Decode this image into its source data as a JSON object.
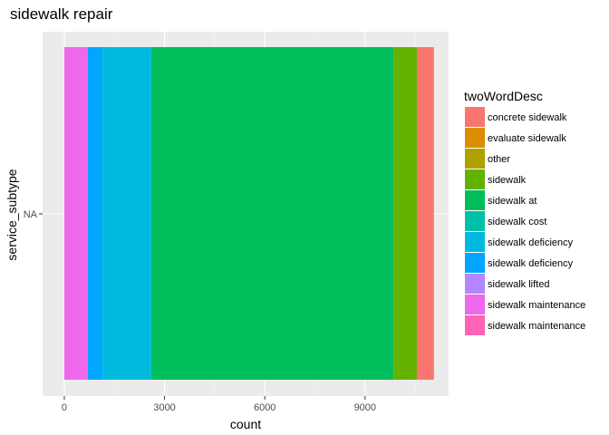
{
  "chart_data": {
    "type": "bar",
    "orientation": "horizontal",
    "stacked": true,
    "title": "sidewalk repair",
    "xlabel": "count",
    "ylabel": "service_subtype",
    "categories": [
      "NA"
    ],
    "xlim": [
      -650,
      11500
    ],
    "xticks": [
      0,
      3000,
      6000,
      9000
    ],
    "xtick_labels": [
      "0",
      "3000",
      "6000",
      "9000"
    ],
    "grid": true,
    "legend_position": "right",
    "legend_title": "twoWordDesc",
    "series": [
      {
        "name": "concrete sidewalk",
        "color": "#F8766D",
        "values": [
          510
        ]
      },
      {
        "name": "evaluate sidewalk",
        "color": "#DB8E00",
        "values": [
          0
        ]
      },
      {
        "name": "other",
        "color": "#AEA200",
        "values": [
          0
        ]
      },
      {
        "name": "sidewalk",
        "color": "#64B200",
        "values": [
          700
        ]
      },
      {
        "name": "sidewalk  at",
        "color": "#00BD5C",
        "values": [
          7250
        ]
      },
      {
        "name": "sidewalk cost",
        "color": "#00C1A7",
        "values": [
          0
        ]
      },
      {
        "name": "sidewalk deficiency",
        "color": "#00BADE",
        "values": [
          1450
        ]
      },
      {
        "name": "sidewalk deficiency",
        "color": "#00A6FF",
        "values": [
          450
        ]
      },
      {
        "name": "sidewalk lifted",
        "color": "#B385FF",
        "values": [
          0
        ]
      },
      {
        "name": "sidewalk maintenance",
        "color": "#EF67EB",
        "values": [
          700
        ]
      },
      {
        "name": "sidewalk maintenance",
        "color": "#FF63B6",
        "values": [
          0
        ]
      }
    ]
  }
}
